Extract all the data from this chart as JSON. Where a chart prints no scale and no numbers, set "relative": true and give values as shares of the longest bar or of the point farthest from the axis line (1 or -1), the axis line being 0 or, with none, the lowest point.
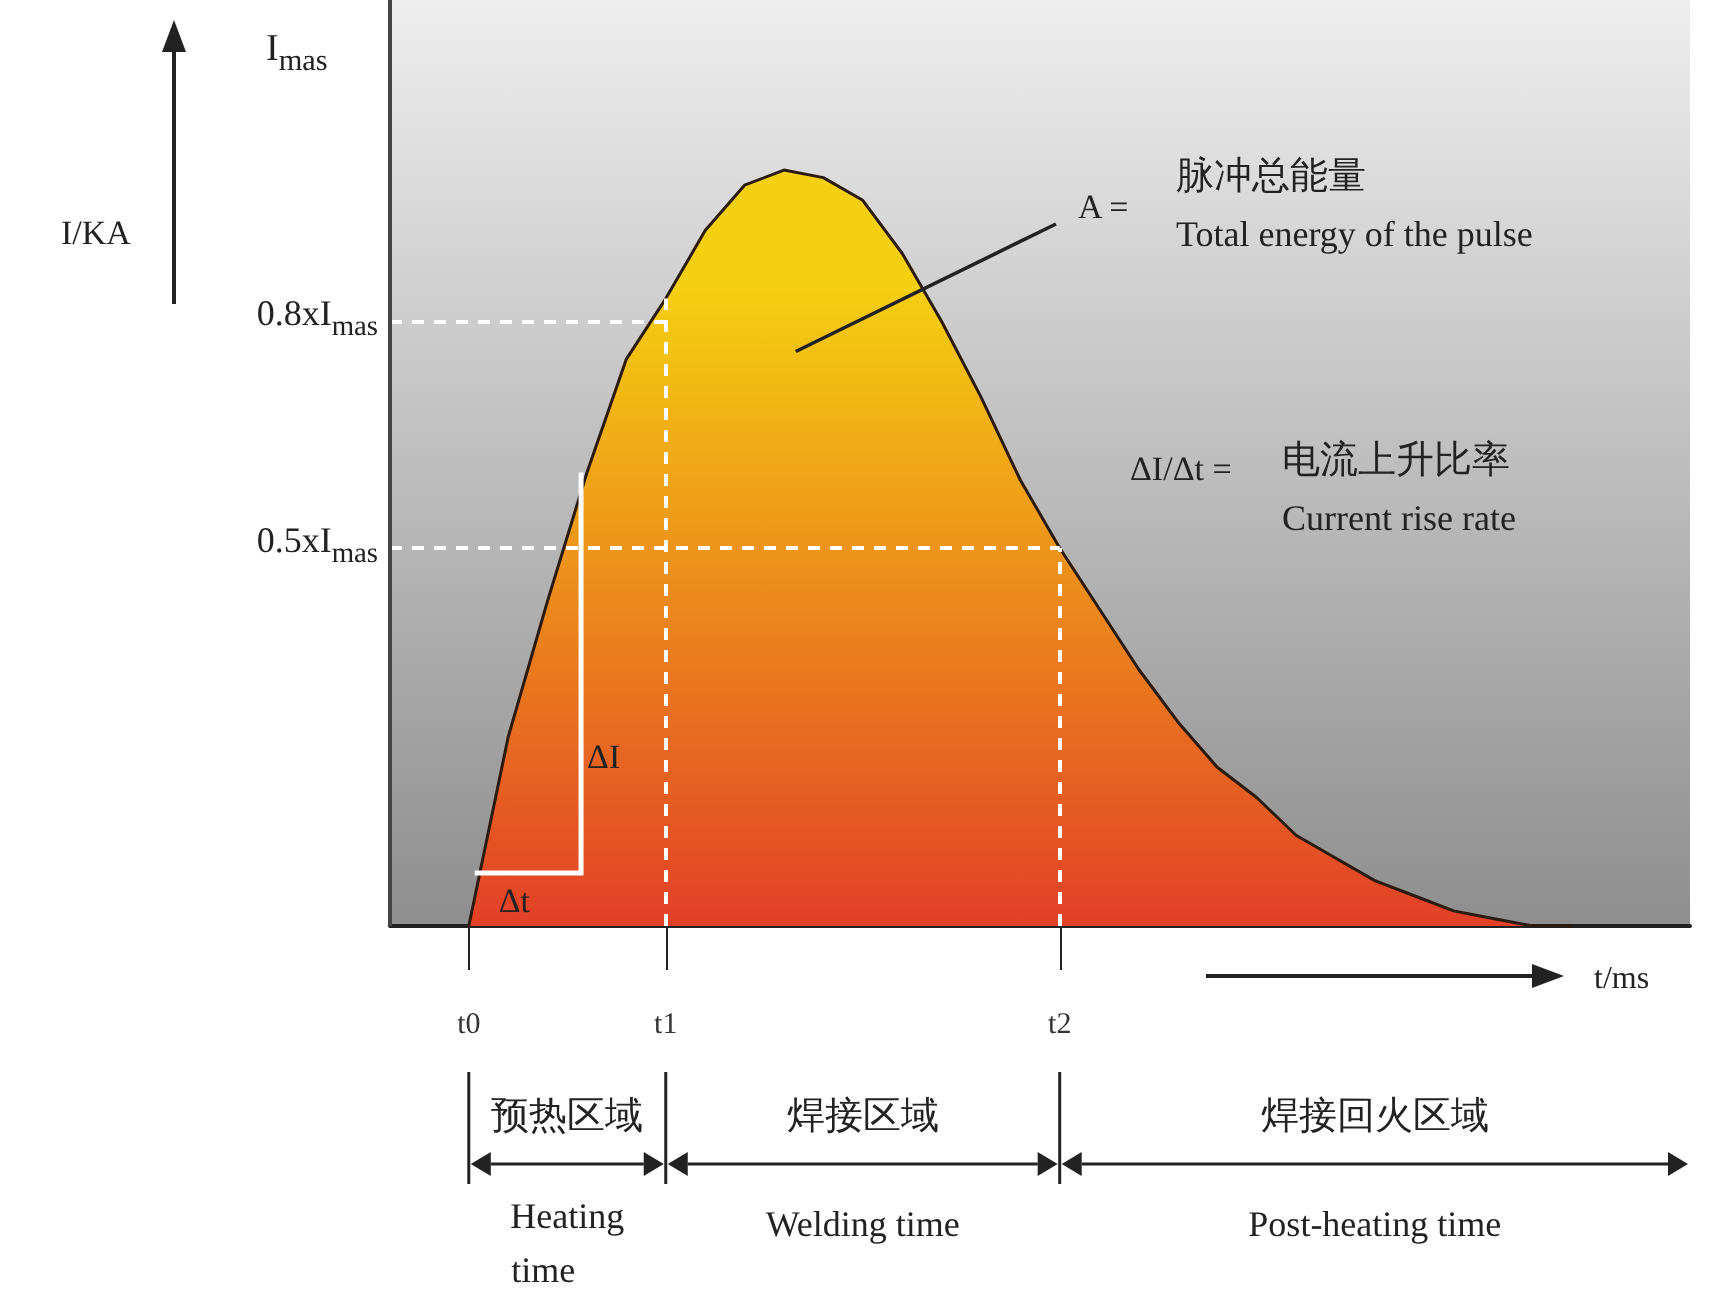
{
  "chart_data": {
    "type": "area",
    "relative": true,
    "xlabel": "t/ms",
    "categories": [
      null,
      null,
      "t0",
      null,
      null,
      null,
      null,
      "t1",
      null,
      null,
      null,
      null,
      null,
      null,
      null,
      null,
      null,
      "t2",
      null,
      null,
      null,
      null,
      null,
      null,
      null,
      null,
      null,
      null,
      null,
      null,
      null,
      null,
      null,
      null
    ],
    "series": [
      {
        "color": "#f5d010",
        "values": [
          null,
          null,
          0,
          0.25,
          0.43,
          0.6,
          0.75,
          0.83,
          0.92,
          0.98,
          1,
          0.99,
          0.96,
          0.89,
          0.8,
          0.7,
          0.59,
          0.5,
          0.42,
          0.34,
          0.27,
          0.21,
          0.17,
          0.12,
          0.09,
          0.06,
          0.04,
          0.02,
          0.01,
          0,
          0,
          null,
          null,
          null
        ]
      }
    ],
    "ref_lines": [
      {
        "axis": "y",
        "value": 0.8,
        "label": "0.8xI$_{mas}$",
        "color": "#ffffff",
        "line_style": "dashed"
      },
      {
        "axis": "y",
        "value": 0.5,
        "label": "0.5xI$_{mas}$",
        "color": "#ffffff",
        "line_style": "dashed"
      },
      {
        "axis": "x",
        "value": "t1",
        "color": "#ffffff",
        "line_style": "dashed"
      },
      {
        "axis": "x",
        "value": "t2",
        "color": "#ffffff",
        "line_style": "dashed"
      }
    ],
    "annotations": [
      "I$_{mas}$",
      "A =",
      "脉冲总能量",
      "Total energy of the pulse",
      "ΔI/Δt =",
      "电流上升比率",
      "Current rise rate",
      "ΔI",
      "Δt",
      "预热区域",
      "Heating time",
      "焊接区域",
      "Welding time",
      "焊接回火区域",
      "Post-heating time",
      "I/KA"
    ]
  }
}
